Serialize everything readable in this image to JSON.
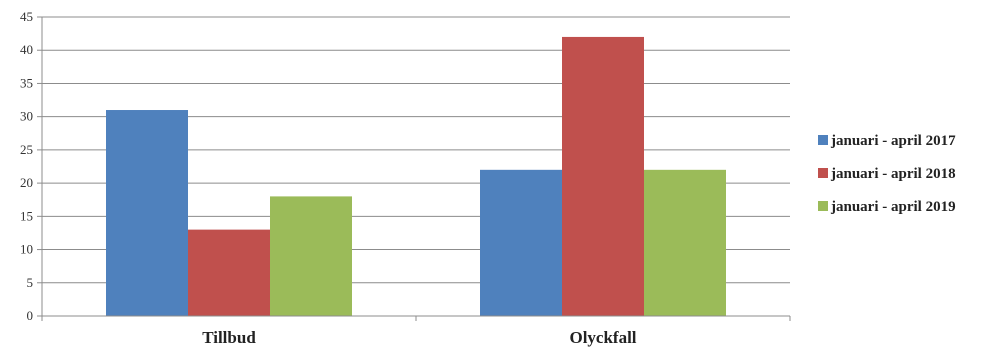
{
  "chart_data": {
    "type": "bar",
    "categories": [
      "Tillbud",
      "Olyckfall"
    ],
    "series": [
      {
        "name": "januari - april 2017",
        "values": [
          31,
          22
        ],
        "color": "#4f81bd"
      },
      {
        "name": "januari - april 2018",
        "values": [
          13,
          42
        ],
        "color": "#c0504d"
      },
      {
        "name": "januari - april 2019",
        "values": [
          18,
          22
        ],
        "color": "#9bbb59"
      }
    ],
    "y_ticks": [
      "0",
      "5",
      "10",
      "15",
      "20",
      "25",
      "30",
      "35",
      "40",
      "45"
    ],
    "ylim": [
      0,
      45
    ],
    "grid": true,
    "legend_position": "right"
  }
}
